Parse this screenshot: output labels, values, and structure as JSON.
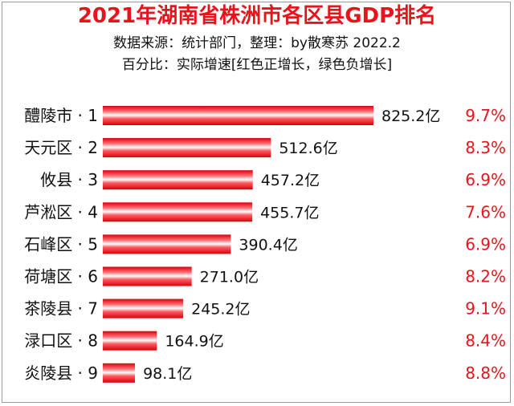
{
  "title": "2021年湖南省株洲市各区县GDP排名",
  "subtitle_source": "数据来源：统计部门，整理：by散寒苏 2022.2",
  "subtitle_note": "百分比：实际增速[红色正增长，绿色负增长]",
  "colors": {
    "bar": "#e8141c",
    "positive": "#e8141c",
    "negative": "#1aa33a",
    "title": "#e8141c"
  },
  "chart_data": {
    "type": "bar",
    "orientation": "horizontal",
    "title": "2021年湖南省株洲市各区县GDP排名",
    "categories": [
      "醴陵市 · 1",
      "天元区 · 2",
      "攸县 · 3",
      "芦淞区 · 4",
      "石峰区 · 5",
      "荷塘区 · 6",
      "茶陵县 · 7",
      "渌口区 · 8",
      "炎陵县 · 9"
    ],
    "values": [
      825.2,
      512.6,
      457.2,
      455.7,
      390.4,
      271.0,
      245.2,
      164.9,
      98.1
    ],
    "value_labels": [
      "825.2亿",
      "512.6亿",
      "457.2亿",
      "455.7亿",
      "390.4亿",
      "271.0亿",
      "245.2亿",
      "164.9亿",
      "98.1亿"
    ],
    "growth_labels": [
      "9.7%",
      "8.3%",
      "6.9%",
      "7.6%",
      "6.9%",
      "8.2%",
      "9.1%",
      "8.4%",
      "8.8%"
    ],
    "growth": [
      9.7,
      8.3,
      6.9,
      7.6,
      6.9,
      8.2,
      9.1,
      8.4,
      8.8
    ],
    "xlabel": "",
    "ylabel": "",
    "grid": false,
    "legend": "none"
  }
}
